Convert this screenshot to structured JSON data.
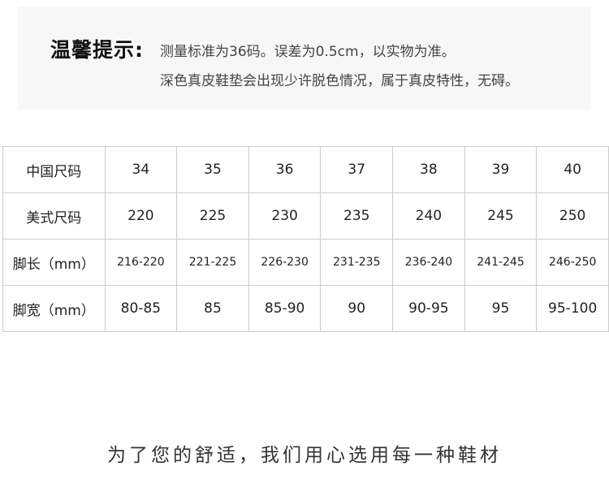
{
  "notice": {
    "title": "温馨提示:",
    "line1": "测量标准为36码。误差为0.5cm，以实物为准。",
    "line2": "深色真皮鞋垫会出现少许脱色情况，属于真皮特性，无碍。"
  },
  "size_table": {
    "rows": [
      {
        "label": "中国尺码",
        "values": [
          "34",
          "35",
          "36",
          "37",
          "38",
          "39",
          "40"
        ]
      },
      {
        "label": "美式尺码",
        "values": [
          "220",
          "225",
          "230",
          "235",
          "240",
          "245",
          "250"
        ]
      },
      {
        "label": "脚长（mm）",
        "values": [
          "216-220",
          "221-225",
          "226-230",
          "231-235",
          "236-240",
          "241-245",
          "246-250"
        ]
      },
      {
        "label": "脚宽（mm）",
        "values": [
          "80-85",
          "85",
          "85-90",
          "90",
          "90-95",
          "95",
          "95-100"
        ]
      }
    ]
  },
  "footer": {
    "text": "为了您的舒适，我们用心选用每一种鞋材"
  }
}
